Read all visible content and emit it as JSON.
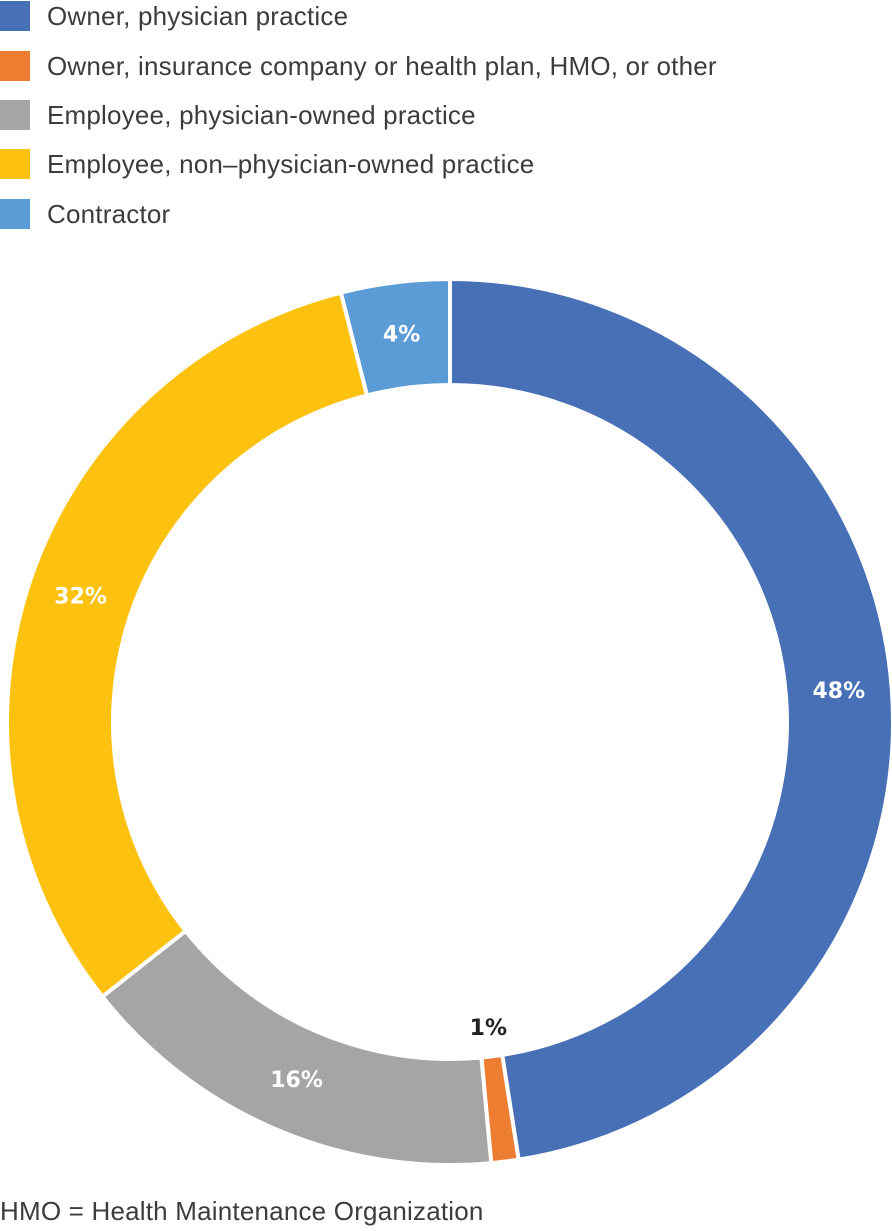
{
  "chart_data": {
    "type": "pie",
    "variant": "donut",
    "legend_position": "top-left",
    "series": [
      {
        "name": "Owner, physician practice",
        "value": 48,
        "label": "48%",
        "color": "#4770b7",
        "label_color": "#ffffff"
      },
      {
        "name": "Owner, insurance company or health plan, HMO, or other",
        "value": 1,
        "label": "1%",
        "color": "#ed7d31",
        "label_color": "#222222"
      },
      {
        "name": "Employee, physician-owned practice",
        "value": 16,
        "label": "16%",
        "color": "#a5a5a5",
        "label_color": "#ffffff"
      },
      {
        "name": "Employee, non–physician-owned practice",
        "value": 32,
        "label": "32%",
        "color": "#fdc110",
        "label_color": "#ffffff"
      },
      {
        "name": "Contractor",
        "value": 4,
        "label": "4%",
        "color": "#5b9cd6",
        "label_color": "#ffffff"
      }
    ]
  },
  "footnote": "HMO = Health Maintenance Organization"
}
